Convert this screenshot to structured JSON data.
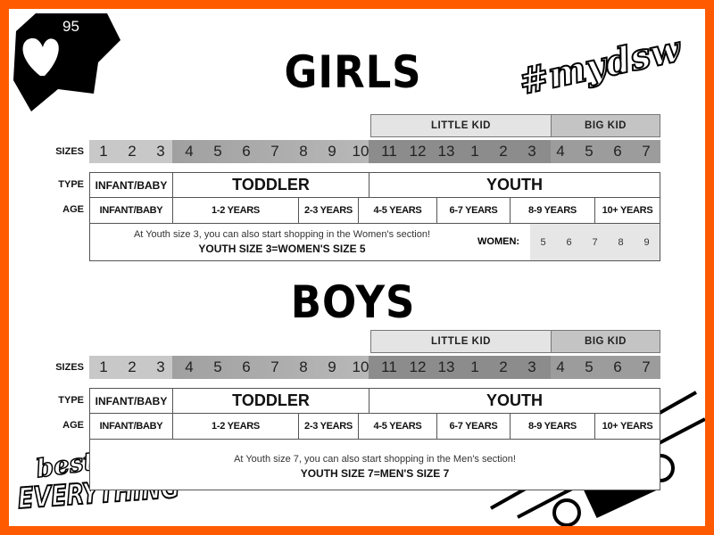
{
  "logos": {
    "badge_count": "95",
    "hashtag": "#mydsw",
    "best_of": "best of",
    "everything": "EVERYTHING"
  },
  "colors": {
    "border": "#ff5a00",
    "size_infant": "#c8c8c8",
    "size_toddler": "#a9a9a9",
    "size_little": "#8c8c8c",
    "size_big": "#9c9c9c"
  },
  "row_labels": {
    "sizes": "SIZES",
    "type": "TYPE",
    "age": "AGE"
  },
  "groups": {
    "little_kid": "LITTLE KID",
    "big_kid": "BIG KID"
  },
  "sizes": [
    "1",
    "2",
    "3",
    "4",
    "5",
    "6",
    "7",
    "8",
    "9",
    "10",
    "11",
    "12",
    "13",
    "1",
    "2",
    "3",
    "4",
    "5",
    "6",
    "7"
  ],
  "types": [
    "INFANT/BABY",
    "TODDLER",
    "YOUTH"
  ],
  "ages": [
    "INFANT/BABY",
    "1-2 YEARS",
    "2-3 YEARS",
    "4-5 YEARS",
    "6-7 YEARS",
    "8-9 YEARS",
    "10+ YEARS"
  ],
  "girls": {
    "title": "GIRLS",
    "note": "At Youth size 3, you can also start shopping in the Women's section!",
    "note_bold": "YOUTH SIZE 3=WOMEN'S SIZE 5",
    "women_label": "WOMEN:",
    "women_sizes": [
      "5",
      "6",
      "7",
      "8",
      "9"
    ]
  },
  "boys": {
    "title": "BOYS",
    "note": "At Youth size 7, you can also start shopping in the Men's section!",
    "note_bold": "YOUTH SIZE 7=MEN'S SIZE 7"
  }
}
